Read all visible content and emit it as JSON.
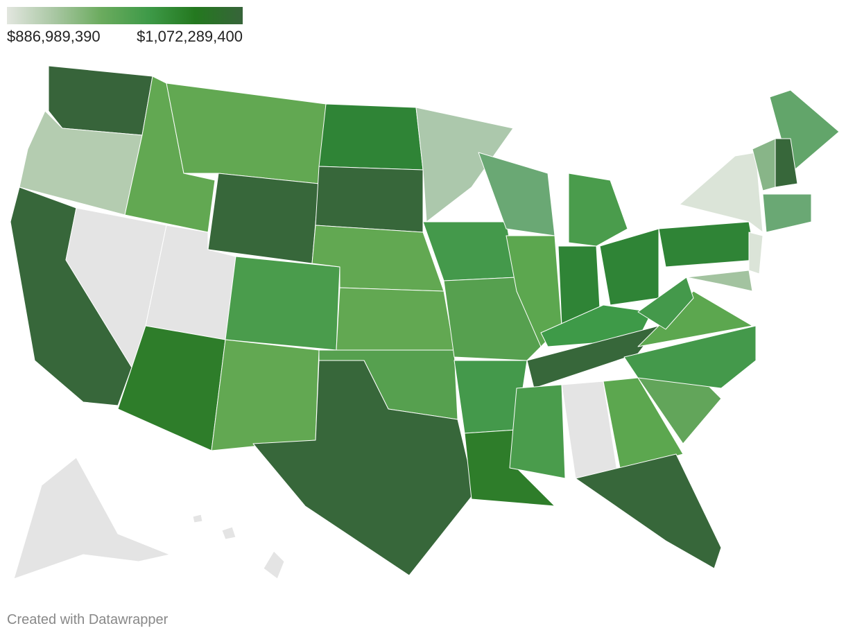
{
  "legend": {
    "min": {
      "value": 886989390,
      "label": "$886,989,390"
    },
    "max": {
      "value": 1072289400,
      "label": "$1,072,289,400"
    },
    "colors": [
      "#e2e6df",
      "#a9c7a3",
      "#6bab5e",
      "#3e9a48",
      "#24781f",
      "#37643a"
    ]
  },
  "footer": {
    "credit": "Created with Datawrapper"
  }
}
